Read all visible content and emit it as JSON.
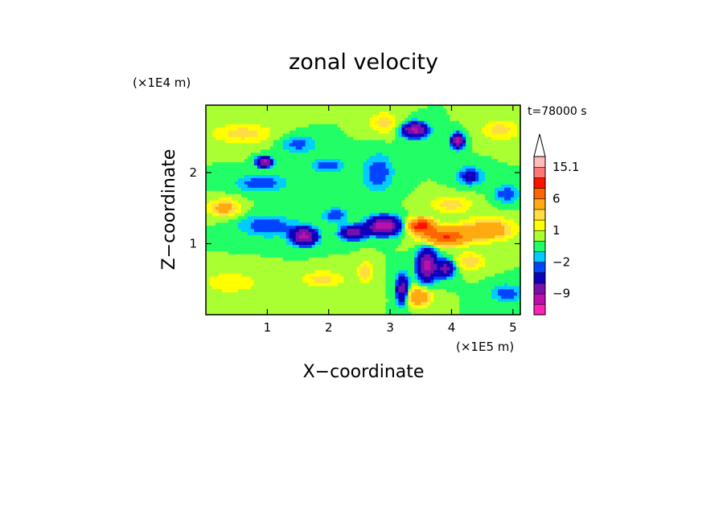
{
  "chart_data": {
    "type": "heatmap",
    "title": "zonal velocity",
    "xlabel": "X−coordinate",
    "ylabel": "Z−coordinate",
    "x_unit": "(×1E5 m)",
    "y_unit": "(×1E4 m)",
    "time_label": "t=78000 s",
    "xlim": [
      0,
      5.12
    ],
    "ylim": [
      0,
      2.95
    ],
    "x_ticks": [
      {
        "value": 1,
        "label": "1"
      },
      {
        "value": 2,
        "label": "2"
      },
      {
        "value": 3,
        "label": "3"
      },
      {
        "value": 4,
        "label": "4"
      },
      {
        "value": 5,
        "label": "5"
      }
    ],
    "y_ticks": [
      {
        "value": 1,
        "label": "1"
      },
      {
        "value": 2,
        "label": "2"
      }
    ],
    "colorbar": {
      "levels": [
        -15,
        -12,
        -9,
        -6,
        -3,
        -2,
        -1,
        0,
        1,
        2,
        3,
        6,
        9,
        12,
        15.1
      ],
      "colors": [
        "#ff22bb",
        "#bb11aa",
        "#7711aa",
        "#1100bb",
        "#0044ff",
        "#00ccff",
        "#22ff66",
        "#aaff33",
        "#ffff00",
        "#ffdd44",
        "#ffaa11",
        "#ff6600",
        "#ff1100",
        "#ff7777",
        "#ffbbbb"
      ],
      "labeled": [
        {
          "value": 15.1,
          "label": "15.1"
        },
        {
          "value": 6,
          "label": "6"
        },
        {
          "value": 1,
          "label": "1"
        },
        {
          "value": -2,
          "label": "−2"
        },
        {
          "value": -9,
          "label": "−9"
        }
      ],
      "extend_max": true
    },
    "field_features": [
      {
        "x": 1.6,
        "z": 1.1,
        "sx": 0.2,
        "sz": 0.12,
        "u": -10
      },
      {
        "x": 1.0,
        "z": 1.25,
        "sx": 0.45,
        "sz": 0.15,
        "u": -3
      },
      {
        "x": 0.9,
        "z": 1.85,
        "sx": 0.4,
        "sz": 0.12,
        "u": -3
      },
      {
        "x": 0.95,
        "z": 2.15,
        "sx": 0.12,
        "sz": 0.07,
        "u": -10
      },
      {
        "x": 0.3,
        "z": 1.5,
        "sx": 0.25,
        "sz": 0.12,
        "u": 4
      },
      {
        "x": 0.4,
        "z": 0.45,
        "sx": 0.45,
        "sz": 0.15,
        "u": 2
      },
      {
        "x": 0.6,
        "z": 2.55,
        "sx": 0.5,
        "sz": 0.15,
        "u": 2.5
      },
      {
        "x": 2.9,
        "z": 1.25,
        "sx": 0.25,
        "sz": 0.12,
        "u": -12
      },
      {
        "x": 2.4,
        "z": 1.15,
        "sx": 0.2,
        "sz": 0.1,
        "u": -8
      },
      {
        "x": 2.1,
        "z": 1.4,
        "sx": 0.2,
        "sz": 0.1,
        "u": -3
      },
      {
        "x": 3.9,
        "z": 1.1,
        "sx": 0.35,
        "sz": 0.12,
        "u": 9
      },
      {
        "x": 3.5,
        "z": 1.25,
        "sx": 0.2,
        "sz": 0.1,
        "u": 11
      },
      {
        "x": 4.6,
        "z": 1.2,
        "sx": 0.4,
        "sz": 0.15,
        "u": 5
      },
      {
        "x": 4.0,
        "z": 1.55,
        "sx": 0.35,
        "sz": 0.12,
        "u": 2.5
      },
      {
        "x": 3.6,
        "z": 0.7,
        "sx": 0.15,
        "sz": 0.22,
        "u": -10
      },
      {
        "x": 3.2,
        "z": 0.35,
        "sx": 0.1,
        "sz": 0.2,
        "u": -8
      },
      {
        "x": 3.9,
        "z": 0.65,
        "sx": 0.15,
        "sz": 0.12,
        "u": -7
      },
      {
        "x": 4.3,
        "z": 0.75,
        "sx": 0.25,
        "sz": 0.12,
        "u": 3
      },
      {
        "x": 3.45,
        "z": 0.25,
        "sx": 0.2,
        "sz": 0.12,
        "u": 6
      },
      {
        "x": 3.4,
        "z": 2.6,
        "sx": 0.2,
        "sz": 0.1,
        "u": -10
      },
      {
        "x": 4.1,
        "z": 2.45,
        "sx": 0.1,
        "sz": 0.1,
        "u": -10
      },
      {
        "x": 4.3,
        "z": 1.95,
        "sx": 0.2,
        "sz": 0.12,
        "u": -4
      },
      {
        "x": 2.8,
        "z": 2.0,
        "sx": 0.25,
        "sz": 0.25,
        "u": -3
      },
      {
        "x": 4.8,
        "z": 2.6,
        "sx": 0.3,
        "sz": 0.15,
        "u": 2.5
      },
      {
        "x": 2.9,
        "z": 2.7,
        "sx": 0.25,
        "sz": 0.15,
        "u": 2.5
      },
      {
        "x": 1.9,
        "z": 0.5,
        "sx": 0.35,
        "sz": 0.12,
        "u": 2.5
      },
      {
        "x": 4.9,
        "z": 0.3,
        "sx": 0.25,
        "sz": 0.12,
        "u": -3
      },
      {
        "x": 1.5,
        "z": 2.4,
        "sx": 0.3,
        "sz": 0.12,
        "u": -2.5
      },
      {
        "x": 2.0,
        "z": 2.1,
        "sx": 0.25,
        "sz": 0.1,
        "u": -3
      },
      {
        "x": 4.9,
        "z": 1.7,
        "sx": 0.2,
        "sz": 0.12,
        "u": -3
      },
      {
        "x": 2.6,
        "z": 0.6,
        "sx": 0.12,
        "sz": 0.15,
        "u": 3
      }
    ]
  }
}
